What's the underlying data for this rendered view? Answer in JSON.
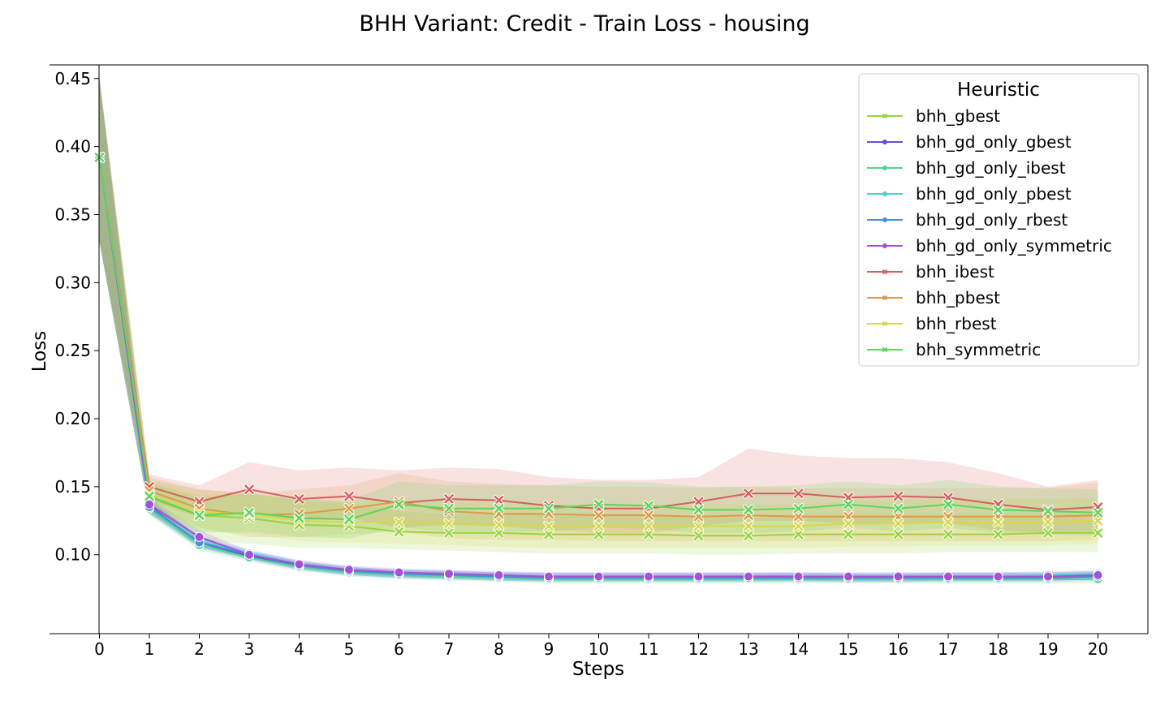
{
  "chart_data": {
    "type": "line",
    "title": "BHH Variant: Credit - Train Loss - housing",
    "xlabel": "Steps",
    "ylabel": "Loss",
    "xlim": [
      -1,
      21
    ],
    "ylim": [
      0.042,
      0.46
    ],
    "x": [
      0,
      1,
      2,
      3,
      4,
      5,
      6,
      7,
      8,
      9,
      10,
      11,
      12,
      13,
      14,
      15,
      16,
      17,
      18,
      19,
      20
    ],
    "xticks": [
      "0",
      "1",
      "2",
      "3",
      "4",
      "5",
      "6",
      "7",
      "8",
      "9",
      "10",
      "11",
      "12",
      "13",
      "14",
      "15",
      "16",
      "17",
      "18",
      "19",
      "20"
    ],
    "yticks": [
      "0.10",
      "0.15",
      "0.20",
      "0.25",
      "0.30",
      "0.35",
      "0.40",
      "0.45"
    ],
    "ytick_values": [
      0.1,
      0.15,
      0.2,
      0.25,
      0.3,
      0.35,
      0.4,
      0.45
    ],
    "grid": false,
    "legend": {
      "title": "Heuristic",
      "placement": "top-right"
    },
    "series": [
      {
        "name": "bhh_gbest",
        "color": "#99d43f",
        "marker": "x",
        "values": [
          0.392,
          0.142,
          0.129,
          0.127,
          0.122,
          0.121,
          0.117,
          0.116,
          0.116,
          0.115,
          0.115,
          0.115,
          0.114,
          0.114,
          0.115,
          0.115,
          0.115,
          0.115,
          0.115,
          0.116,
          0.116
        ],
        "lower": [
          0.33,
          0.13,
          0.11,
          0.108,
          0.105,
          0.105,
          0.104,
          0.103,
          0.102,
          0.101,
          0.101,
          0.101,
          0.1,
          0.1,
          0.101,
          0.101,
          0.101,
          0.102,
          0.102,
          0.102,
          0.102
        ],
        "upper": [
          0.45,
          0.155,
          0.148,
          0.145,
          0.14,
          0.138,
          0.132,
          0.13,
          0.13,
          0.13,
          0.13,
          0.13,
          0.128,
          0.128,
          0.13,
          0.13,
          0.13,
          0.13,
          0.13,
          0.13,
          0.13
        ]
      },
      {
        "name": "bhh_gd_only_gbest",
        "color": "#5b52d6",
        "marker": "o",
        "values": [
          0.392,
          0.136,
          0.109,
          0.099,
          0.092,
          0.088,
          0.086,
          0.085,
          0.084,
          0.084,
          0.084,
          0.084,
          0.084,
          0.084,
          0.084,
          0.083,
          0.083,
          0.084,
          0.084,
          0.084,
          0.085
        ],
        "lower": [
          0.33,
          0.131,
          0.105,
          0.096,
          0.089,
          0.085,
          0.083,
          0.082,
          0.081,
          0.081,
          0.081,
          0.081,
          0.081,
          0.081,
          0.081,
          0.08,
          0.08,
          0.081,
          0.081,
          0.081,
          0.082
        ],
        "upper": [
          0.45,
          0.141,
          0.113,
          0.102,
          0.095,
          0.091,
          0.089,
          0.088,
          0.087,
          0.087,
          0.087,
          0.087,
          0.087,
          0.087,
          0.087,
          0.086,
          0.086,
          0.087,
          0.087,
          0.087,
          0.088
        ]
      },
      {
        "name": "bhh_gd_only_ibest",
        "color": "#4ed68f",
        "marker": "o",
        "values": [
          0.392,
          0.134,
          0.107,
          0.098,
          0.091,
          0.087,
          0.085,
          0.084,
          0.083,
          0.082,
          0.082,
          0.082,
          0.082,
          0.082,
          0.082,
          0.082,
          0.082,
          0.082,
          0.082,
          0.082,
          0.082
        ],
        "lower": [
          0.33,
          0.129,
          0.103,
          0.095,
          0.088,
          0.084,
          0.082,
          0.081,
          0.08,
          0.079,
          0.079,
          0.079,
          0.079,
          0.079,
          0.079,
          0.079,
          0.079,
          0.079,
          0.079,
          0.079,
          0.079
        ],
        "upper": [
          0.45,
          0.139,
          0.111,
          0.101,
          0.094,
          0.09,
          0.088,
          0.087,
          0.086,
          0.085,
          0.085,
          0.085,
          0.085,
          0.085,
          0.085,
          0.085,
          0.085,
          0.085,
          0.085,
          0.085,
          0.085
        ]
      },
      {
        "name": "bhh_gd_only_pbest",
        "color": "#4fd1ce",
        "marker": "o",
        "values": [
          0.392,
          0.135,
          0.11,
          0.101,
          0.093,
          0.088,
          0.086,
          0.085,
          0.084,
          0.083,
          0.083,
          0.083,
          0.083,
          0.083,
          0.084,
          0.084,
          0.084,
          0.084,
          0.084,
          0.085,
          0.086
        ],
        "lower": [
          0.33,
          0.13,
          0.106,
          0.098,
          0.09,
          0.085,
          0.083,
          0.082,
          0.081,
          0.08,
          0.08,
          0.08,
          0.08,
          0.08,
          0.081,
          0.081,
          0.081,
          0.081,
          0.081,
          0.082,
          0.083
        ],
        "upper": [
          0.45,
          0.14,
          0.114,
          0.104,
          0.096,
          0.091,
          0.089,
          0.088,
          0.087,
          0.086,
          0.086,
          0.086,
          0.086,
          0.086,
          0.087,
          0.087,
          0.087,
          0.087,
          0.087,
          0.088,
          0.089
        ]
      },
      {
        "name": "bhh_gd_only_rbest",
        "color": "#4a8ed6",
        "marker": "o",
        "values": [
          0.392,
          0.135,
          0.109,
          0.1,
          0.092,
          0.088,
          0.086,
          0.085,
          0.084,
          0.083,
          0.083,
          0.083,
          0.083,
          0.083,
          0.083,
          0.083,
          0.083,
          0.083,
          0.083,
          0.083,
          0.084
        ],
        "lower": [
          0.33,
          0.13,
          0.105,
          0.097,
          0.089,
          0.085,
          0.083,
          0.082,
          0.081,
          0.08,
          0.08,
          0.08,
          0.08,
          0.08,
          0.08,
          0.08,
          0.08,
          0.08,
          0.08,
          0.08,
          0.081
        ],
        "upper": [
          0.45,
          0.14,
          0.113,
          0.103,
          0.095,
          0.091,
          0.089,
          0.088,
          0.087,
          0.086,
          0.086,
          0.086,
          0.086,
          0.086,
          0.086,
          0.086,
          0.086,
          0.086,
          0.086,
          0.086,
          0.087
        ]
      },
      {
        "name": "bhh_gd_only_symmetric",
        "color": "#a352d6",
        "marker": "o",
        "values": [
          0.392,
          0.137,
          0.113,
          0.1,
          0.093,
          0.089,
          0.087,
          0.086,
          0.085,
          0.084,
          0.084,
          0.084,
          0.084,
          0.084,
          0.084,
          0.084,
          0.084,
          0.084,
          0.084,
          0.084,
          0.085
        ],
        "lower": [
          0.33,
          0.132,
          0.108,
          0.097,
          0.09,
          0.086,
          0.084,
          0.083,
          0.082,
          0.081,
          0.081,
          0.081,
          0.081,
          0.081,
          0.081,
          0.081,
          0.081,
          0.081,
          0.081,
          0.081,
          0.082
        ],
        "upper": [
          0.45,
          0.142,
          0.118,
          0.103,
          0.096,
          0.092,
          0.09,
          0.089,
          0.088,
          0.087,
          0.087,
          0.087,
          0.087,
          0.087,
          0.087,
          0.087,
          0.087,
          0.087,
          0.087,
          0.087,
          0.088
        ]
      },
      {
        "name": "bhh_ibest",
        "color": "#d65f5f",
        "marker": "x",
        "values": [
          0.392,
          0.15,
          0.139,
          0.148,
          0.141,
          0.143,
          0.138,
          0.141,
          0.14,
          0.136,
          0.134,
          0.134,
          0.139,
          0.145,
          0.145,
          0.142,
          0.143,
          0.142,
          0.137,
          0.133,
          0.135
        ],
        "lower": [
          0.33,
          0.14,
          0.127,
          0.13,
          0.125,
          0.127,
          0.12,
          0.122,
          0.121,
          0.118,
          0.116,
          0.116,
          0.121,
          0.125,
          0.125,
          0.123,
          0.124,
          0.123,
          0.118,
          0.116,
          0.117
        ],
        "upper": [
          0.45,
          0.159,
          0.151,
          0.168,
          0.162,
          0.164,
          0.162,
          0.164,
          0.163,
          0.157,
          0.155,
          0.155,
          0.157,
          0.178,
          0.173,
          0.171,
          0.171,
          0.168,
          0.16,
          0.15,
          0.155
        ]
      },
      {
        "name": "bhh_pbest",
        "color": "#dc9a4b",
        "marker": "x",
        "values": [
          0.392,
          0.147,
          0.134,
          0.129,
          0.13,
          0.134,
          0.139,
          0.132,
          0.13,
          0.13,
          0.129,
          0.129,
          0.128,
          0.129,
          0.128,
          0.128,
          0.128,
          0.128,
          0.128,
          0.128,
          0.129
        ],
        "lower": [
          0.33,
          0.137,
          0.12,
          0.113,
          0.113,
          0.115,
          0.117,
          0.112,
          0.111,
          0.111,
          0.11,
          0.11,
          0.11,
          0.11,
          0.11,
          0.11,
          0.11,
          0.11,
          0.11,
          0.11,
          0.111
        ],
        "upper": [
          0.45,
          0.157,
          0.148,
          0.145,
          0.148,
          0.151,
          0.16,
          0.154,
          0.152,
          0.151,
          0.15,
          0.15,
          0.149,
          0.15,
          0.149,
          0.149,
          0.149,
          0.149,
          0.149,
          0.149,
          0.153
        ]
      },
      {
        "name": "bhh_rbest",
        "color": "#d8d84c",
        "marker": "x",
        "values": [
          0.392,
          0.144,
          0.131,
          0.13,
          0.125,
          0.124,
          0.124,
          0.123,
          0.122,
          0.121,
          0.121,
          0.121,
          0.121,
          0.121,
          0.121,
          0.123,
          0.123,
          0.124,
          0.124,
          0.124,
          0.125
        ],
        "lower": [
          0.33,
          0.134,
          0.118,
          0.115,
          0.11,
          0.109,
          0.108,
          0.107,
          0.106,
          0.105,
          0.105,
          0.105,
          0.105,
          0.105,
          0.105,
          0.106,
          0.106,
          0.107,
          0.107,
          0.107,
          0.108
        ],
        "upper": [
          0.45,
          0.154,
          0.144,
          0.145,
          0.14,
          0.139,
          0.14,
          0.139,
          0.138,
          0.137,
          0.137,
          0.137,
          0.137,
          0.137,
          0.137,
          0.14,
          0.14,
          0.141,
          0.141,
          0.141,
          0.142
        ]
      },
      {
        "name": "bhh_symmetric",
        "color": "#5bd65b",
        "marker": "x",
        "values": [
          0.392,
          0.143,
          0.129,
          0.131,
          0.127,
          0.126,
          0.137,
          0.134,
          0.134,
          0.134,
          0.137,
          0.136,
          0.133,
          0.133,
          0.134,
          0.137,
          0.134,
          0.137,
          0.133,
          0.132,
          0.131
        ],
        "lower": [
          0.33,
          0.133,
          0.116,
          0.117,
          0.113,
          0.112,
          0.12,
          0.117,
          0.117,
          0.117,
          0.12,
          0.119,
          0.116,
          0.116,
          0.117,
          0.12,
          0.117,
          0.12,
          0.116,
          0.115,
          0.114
        ],
        "upper": [
          0.45,
          0.153,
          0.142,
          0.145,
          0.141,
          0.14,
          0.154,
          0.151,
          0.151,
          0.151,
          0.154,
          0.153,
          0.15,
          0.15,
          0.151,
          0.154,
          0.151,
          0.155,
          0.15,
          0.149,
          0.148
        ]
      }
    ]
  }
}
